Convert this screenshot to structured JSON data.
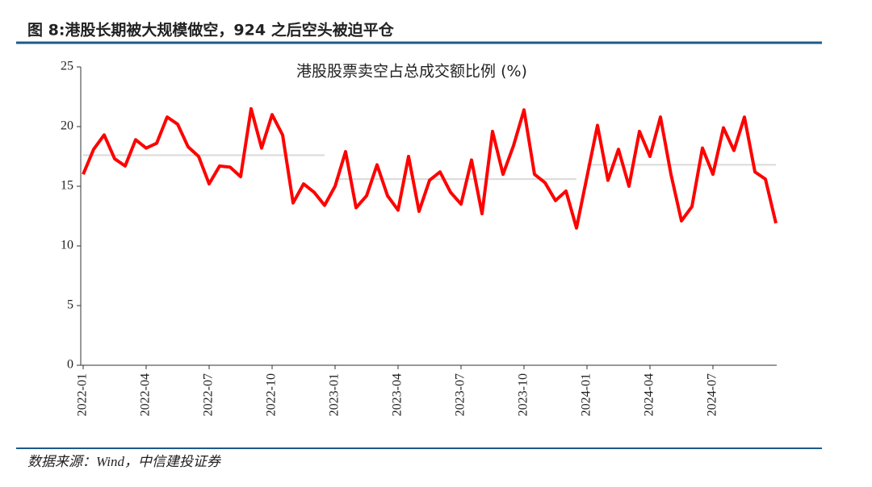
{
  "header": {
    "title": "图 8:港股长期被大规模做空，924 之后空头被迫平仓"
  },
  "chart_data": {
    "type": "line",
    "title": "港股股票卖空占总成交额比例 (%)",
    "categories": [
      "2022-01",
      null,
      null,
      null,
      null,
      null,
      "2022-04",
      null,
      null,
      null,
      null,
      null,
      "2022-07",
      null,
      null,
      null,
      null,
      null,
      "2022-10",
      null,
      null,
      null,
      null,
      null,
      "2023-01",
      null,
      null,
      null,
      null,
      null,
      "2023-04",
      null,
      null,
      null,
      null,
      null,
      "2023-07",
      null,
      null,
      null,
      null,
      null,
      "2023-10",
      null,
      null,
      null,
      null,
      null,
      "2024-01",
      null,
      null,
      null,
      null,
      null,
      "2024-04",
      null,
      null,
      null,
      null,
      null,
      "2024-07",
      null,
      null,
      null,
      null,
      null,
      null
    ],
    "series": [
      {
        "color": "#ff0000",
        "values": [
          16.0,
          18.1,
          19.3,
          17.3,
          16.7,
          18.9,
          18.2,
          18.6,
          20.8,
          20.2,
          18.3,
          17.5,
          15.2,
          16.7,
          16.6,
          15.8,
          21.5,
          18.2,
          21.0,
          19.3,
          13.6,
          15.2,
          14.5,
          13.4,
          15.0,
          17.9,
          13.2,
          14.2,
          16.8,
          14.2,
          13.0,
          17.5,
          12.9,
          15.5,
          16.2,
          14.5,
          13.5,
          17.2,
          12.7,
          19.6,
          16.0,
          18.4,
          21.4,
          16.0,
          15.3,
          13.8,
          14.6,
          11.5,
          15.8,
          20.1,
          15.5,
          18.1,
          15.0,
          19.6,
          17.5,
          20.8,
          16.0,
          12.1,
          13.3,
          18.2,
          16.0,
          19.9,
          18.0,
          20.8,
          16.2,
          15.6,
          11.9
        ]
      }
    ],
    "reference_lines": [
      {
        "value": 17.6,
        "color": "#d9d9d9"
      },
      {
        "value": 15.6,
        "color": "#d9d9d9"
      },
      {
        "value": 16.8,
        "color": "#d9d9d9"
      }
    ],
    "ylim": [
      0,
      25
    ],
    "yticks": [
      0,
      5,
      10,
      15,
      20,
      25
    ]
  },
  "footer": {
    "source": "数据来源：Wind，中信建投证券"
  }
}
